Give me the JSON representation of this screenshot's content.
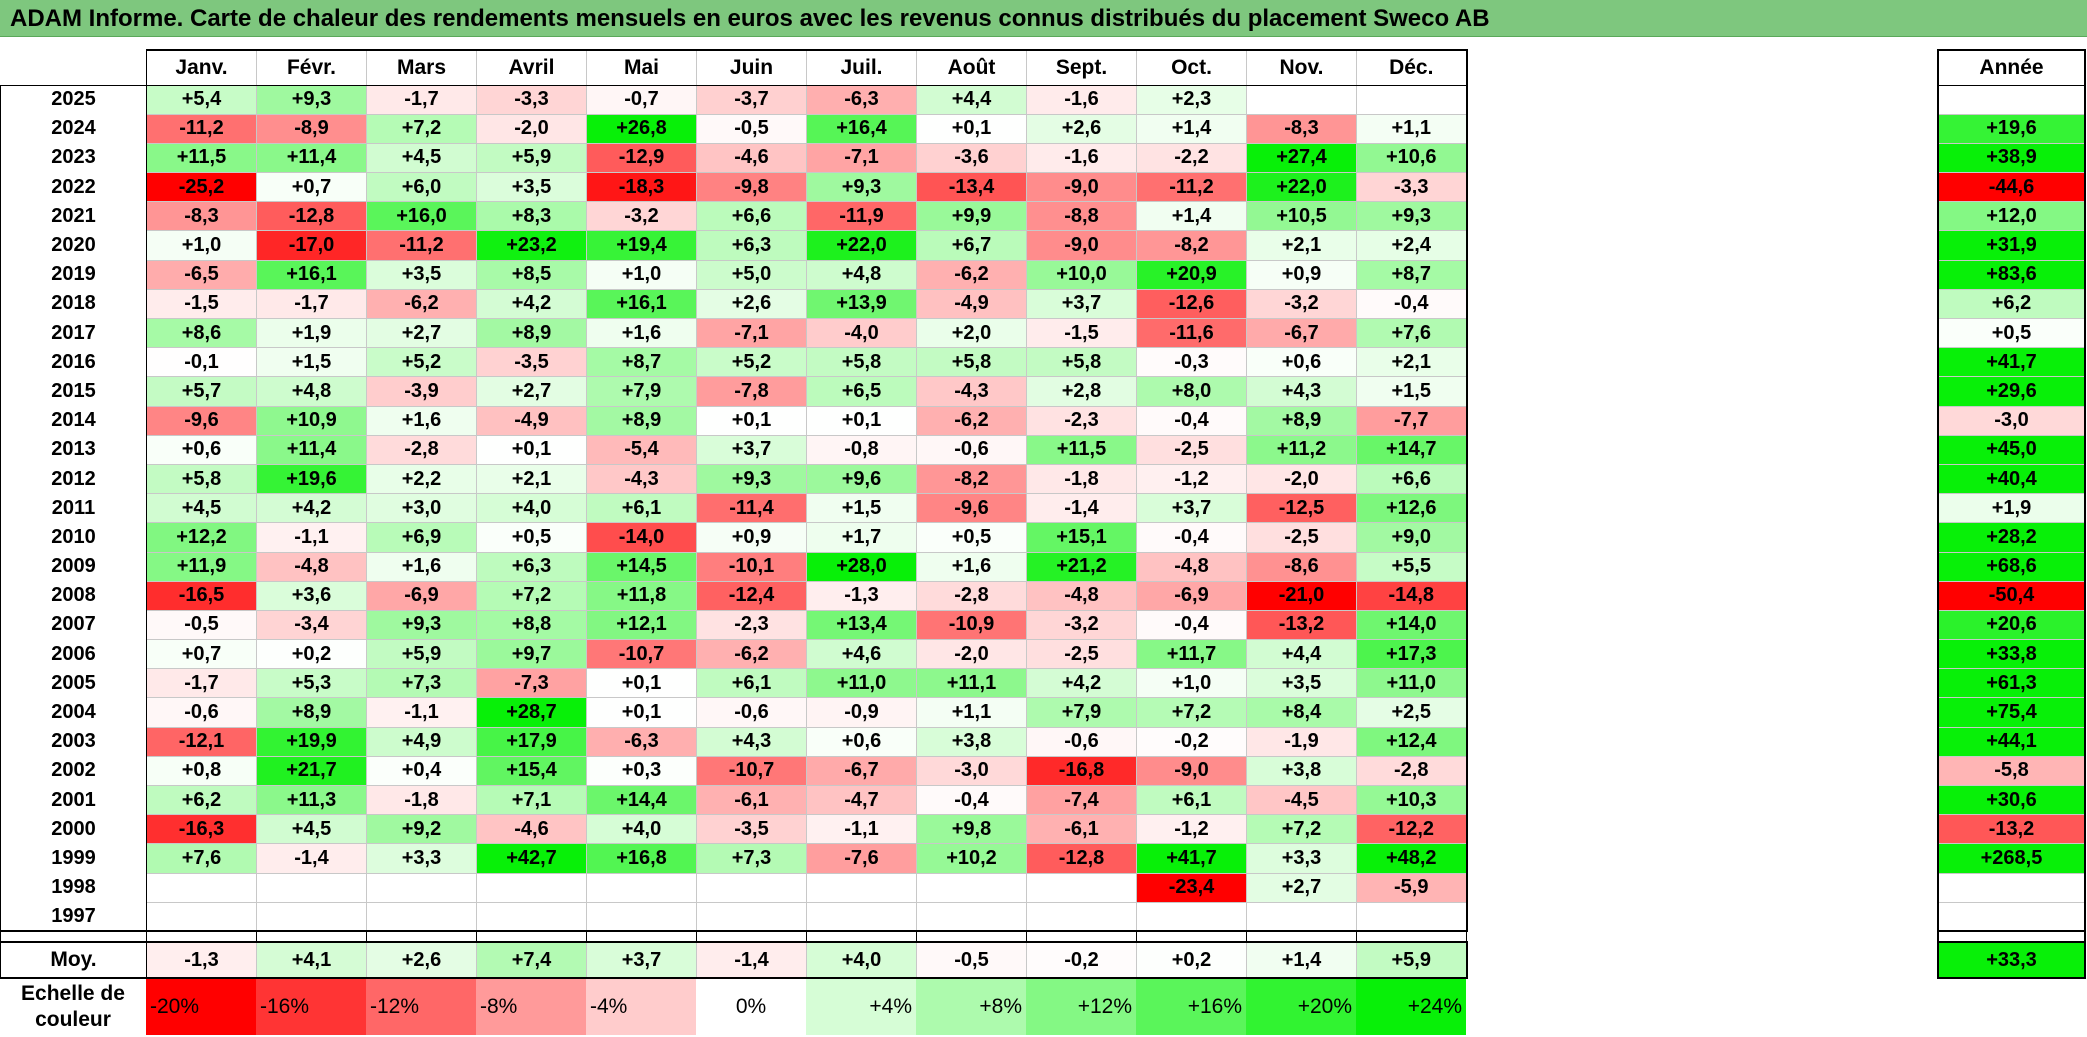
{
  "title": "ADAM Informe. Carte de chaleur des rendements mensuels en euros avec les revenus connus distribués du placement Sweco AB",
  "chart_data": {
    "type": "heatmap",
    "title": "ADAM Informe. Carte de chaleur des rendements mensuels en euros avec les revenus connus distribués du placement Sweco AB",
    "months": [
      "Janv.",
      "Févr.",
      "Mars",
      "Avril",
      "Mai",
      "Juin",
      "Juil.",
      "Août",
      "Sept.",
      "Oct.",
      "Nov.",
      "Déc."
    ],
    "annual_header": "Année",
    "rows": [
      {
        "year": "2025",
        "values": [
          5.4,
          9.3,
          -1.7,
          -3.3,
          -0.7,
          -3.7,
          -6.3,
          4.4,
          -1.6,
          2.3,
          null,
          null
        ],
        "annual": null
      },
      {
        "year": "2024",
        "values": [
          -11.2,
          -8.9,
          7.2,
          -2.0,
          26.8,
          -0.5,
          16.4,
          0.1,
          2.6,
          1.4,
          -8.3,
          1.1
        ],
        "annual": 19.6
      },
      {
        "year": "2023",
        "values": [
          11.5,
          11.4,
          4.5,
          5.9,
          -12.9,
          -4.6,
          -7.1,
          -3.6,
          -1.6,
          -2.2,
          27.4,
          10.6
        ],
        "annual": 38.9
      },
      {
        "year": "2022",
        "values": [
          -25.2,
          0.7,
          6.0,
          3.5,
          -18.3,
          -9.8,
          9.3,
          -13.4,
          -9.0,
          -11.2,
          22.0,
          -3.3
        ],
        "annual": -44.6
      },
      {
        "year": "2021",
        "values": [
          -8.3,
          -12.8,
          16.0,
          8.3,
          -3.2,
          6.6,
          -11.9,
          9.9,
          -8.8,
          1.4,
          10.5,
          9.3
        ],
        "annual": 12.0
      },
      {
        "year": "2020",
        "values": [
          1.0,
          -17.0,
          -11.2,
          23.2,
          19.4,
          6.3,
          22.0,
          6.7,
          -9.0,
          -8.2,
          2.1,
          2.4
        ],
        "annual": 31.9
      },
      {
        "year": "2019",
        "values": [
          -6.5,
          16.1,
          3.5,
          8.5,
          1.0,
          5.0,
          4.8,
          -6.2,
          10.0,
          20.9,
          0.9,
          8.7
        ],
        "annual": 83.6
      },
      {
        "year": "2018",
        "values": [
          -1.5,
          -1.7,
          -6.2,
          4.2,
          16.1,
          2.6,
          13.9,
          -4.9,
          3.7,
          -12.6,
          -3.2,
          -0.4
        ],
        "annual": 6.2
      },
      {
        "year": "2017",
        "values": [
          8.6,
          1.9,
          2.7,
          8.9,
          1.6,
          -7.1,
          -4.0,
          2.0,
          -1.5,
          -11.6,
          -6.7,
          7.6
        ],
        "annual": 0.5
      },
      {
        "year": "2016",
        "values": [
          -0.1,
          1.5,
          5.2,
          -3.5,
          8.7,
          5.2,
          5.8,
          5.8,
          5.8,
          -0.3,
          0.6,
          2.1
        ],
        "annual": 41.7
      },
      {
        "year": "2015",
        "values": [
          5.7,
          4.8,
          -3.9,
          2.7,
          7.9,
          -7.8,
          6.5,
          -4.3,
          2.8,
          8.0,
          4.3,
          1.5
        ],
        "annual": 29.6
      },
      {
        "year": "2014",
        "values": [
          -9.6,
          10.9,
          1.6,
          -4.9,
          8.9,
          0.1,
          0.1,
          -6.2,
          -2.3,
          -0.4,
          8.9,
          -7.7
        ],
        "annual": -3.0
      },
      {
        "year": "2013",
        "values": [
          0.6,
          11.4,
          -2.8,
          0.1,
          -5.4,
          3.7,
          -0.8,
          -0.6,
          11.5,
          -2.5,
          11.2,
          14.7
        ],
        "annual": 45.0
      },
      {
        "year": "2012",
        "values": [
          5.8,
          19.6,
          2.2,
          2.1,
          -4.3,
          9.3,
          9.6,
          -8.2,
          -1.8,
          -1.2,
          -2.0,
          6.6
        ],
        "annual": 40.4
      },
      {
        "year": "2011",
        "values": [
          4.5,
          4.2,
          3.0,
          4.0,
          6.1,
          -11.4,
          1.5,
          -9.6,
          -1.4,
          3.7,
          -12.5,
          12.6
        ],
        "annual": 1.9
      },
      {
        "year": "2010",
        "values": [
          12.2,
          -1.1,
          6.9,
          0.5,
          -14.0,
          0.9,
          1.7,
          0.5,
          15.1,
          -0.4,
          -2.5,
          9.0
        ],
        "annual": 28.2
      },
      {
        "year": "2009",
        "values": [
          11.9,
          -4.8,
          1.6,
          6.3,
          14.5,
          -10.1,
          28.0,
          1.6,
          21.2,
          -4.8,
          -8.6,
          5.5
        ],
        "annual": 68.6
      },
      {
        "year": "2008",
        "values": [
          -16.5,
          3.6,
          -6.9,
          7.2,
          11.8,
          -12.4,
          -1.3,
          -2.8,
          -4.8,
          -6.9,
          -21.0,
          -14.8
        ],
        "annual": -50.4
      },
      {
        "year": "2007",
        "values": [
          -0.5,
          -3.4,
          9.3,
          8.8,
          12.1,
          -2.3,
          13.4,
          -10.9,
          -3.2,
          -0.4,
          -13.2,
          14.0
        ],
        "annual": 20.6
      },
      {
        "year": "2006",
        "values": [
          0.7,
          0.2,
          5.9,
          9.7,
          -10.7,
          -6.2,
          4.6,
          -2.0,
          -2.5,
          11.7,
          4.4,
          17.3
        ],
        "annual": 33.8
      },
      {
        "year": "2005",
        "values": [
          -1.7,
          5.3,
          7.3,
          -7.3,
          0.1,
          6.1,
          11.0,
          11.1,
          4.2,
          1.0,
          3.5,
          11.0
        ],
        "annual": 61.3
      },
      {
        "year": "2004",
        "values": [
          -0.6,
          8.9,
          -1.1,
          28.7,
          0.1,
          -0.6,
          -0.9,
          1.1,
          7.9,
          7.2,
          8.4,
          2.5
        ],
        "annual": 75.4
      },
      {
        "year": "2003",
        "values": [
          -12.1,
          19.9,
          4.9,
          17.9,
          -6.3,
          4.3,
          0.6,
          3.8,
          -0.6,
          -0.2,
          -1.9,
          12.4
        ],
        "annual": 44.1
      },
      {
        "year": "2002",
        "values": [
          0.8,
          21.7,
          0.4,
          15.4,
          0.3,
          -10.7,
          -6.7,
          -3.0,
          -16.8,
          -9.0,
          3.8,
          -2.8
        ],
        "annual": -5.8
      },
      {
        "year": "2001",
        "values": [
          6.2,
          11.3,
          -1.8,
          7.1,
          14.4,
          -6.1,
          -4.7,
          -0.4,
          -7.4,
          6.1,
          -4.5,
          10.3
        ],
        "annual": 30.6
      },
      {
        "year": "2000",
        "values": [
          -16.3,
          4.5,
          9.2,
          -4.6,
          4.0,
          -3.5,
          -1.1,
          9.8,
          -6.1,
          -1.2,
          7.2,
          -12.2
        ],
        "annual": -13.2
      },
      {
        "year": "1999",
        "values": [
          7.6,
          -1.4,
          3.3,
          42.7,
          16.8,
          7.3,
          -7.6,
          10.2,
          -12.8,
          41.7,
          3.3,
          48.2
        ],
        "annual": 268.5
      },
      {
        "year": "1998",
        "values": [
          null,
          null,
          null,
          null,
          null,
          null,
          null,
          null,
          null,
          -23.4,
          2.7,
          -5.9
        ],
        "annual": null
      },
      {
        "year": "1997",
        "values": [
          null,
          null,
          null,
          null,
          null,
          null,
          null,
          null,
          null,
          null,
          null,
          null
        ],
        "annual": null
      }
    ],
    "average": {
      "label": "Moy.",
      "values": [
        -1.3,
        4.1,
        2.6,
        7.4,
        3.7,
        -1.4,
        4.0,
        -0.5,
        -0.2,
        0.2,
        1.4,
        5.9
      ],
      "annual": 33.3
    },
    "color_scale": {
      "label": "Echelle de couleur",
      "stops": [
        {
          "label": "-20%",
          "value": -20,
          "color": "#ff0000"
        },
        {
          "label": "-16%",
          "value": -16,
          "color": "#ff3434"
        },
        {
          "label": "-12%",
          "value": -12,
          "color": "#ff6767"
        },
        {
          "label": "-8%",
          "value": -8,
          "color": "#ff9a9a"
        },
        {
          "label": "-4%",
          "value": -4,
          "color": "#ffcccc"
        },
        {
          "label": "0%",
          "value": 0,
          "color": "#ffffff"
        },
        {
          "label": "+4%",
          "value": 4,
          "color": "#d6fdd6"
        },
        {
          "label": "+8%",
          "value": 8,
          "color": "#adfaad"
        },
        {
          "label": "+12%",
          "value": 12,
          "color": "#84f884"
        },
        {
          "label": "+16%",
          "value": 16,
          "color": "#5af55a"
        },
        {
          "label": "+20%",
          "value": 20,
          "color": "#31f331"
        },
        {
          "label": "+24%",
          "value": 24,
          "color": "#08f008"
        }
      ]
    }
  }
}
